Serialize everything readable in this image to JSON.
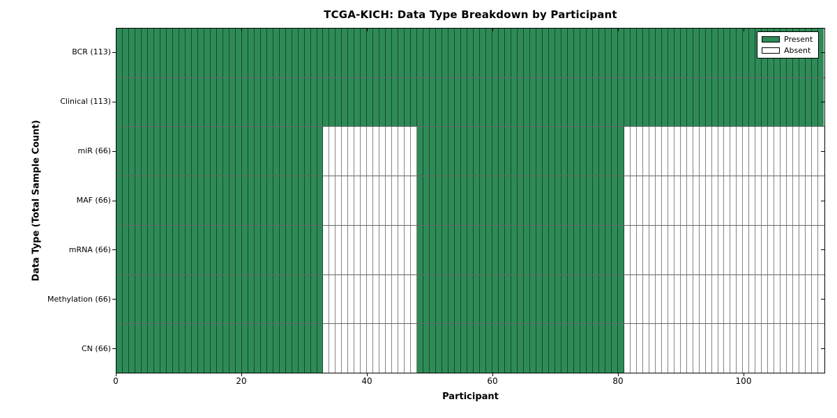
{
  "title": "TCGA-KICH: Data Type Breakdown by Participant",
  "chart_data": {
    "type": "heatmap",
    "title": "TCGA-KICH: Data Type Breakdown by Participant",
    "xlabel": "Participant",
    "ylabel": "Data Type (Total Sample Count)",
    "n_participants": 113,
    "xlim": [
      0,
      113
    ],
    "x_ticks": [
      0,
      20,
      40,
      60,
      80,
      100
    ],
    "grid": true,
    "legend": {
      "position": "upper right",
      "entries": [
        {
          "label": "Present",
          "color": "#2e8b57"
        },
        {
          "label": "Absent",
          "color": "#ffffff"
        }
      ]
    },
    "colors": {
      "present": "#2e8b57",
      "absent": "#ffffff",
      "axis": "#000000"
    },
    "rows": [
      {
        "label": "BCR (113)",
        "data_type": "BCR",
        "total_samples": 113,
        "present_ranges": [
          [
            0,
            113
          ]
        ]
      },
      {
        "label": "Clinical (113)",
        "data_type": "Clinical",
        "total_samples": 113,
        "present_ranges": [
          [
            0,
            113
          ]
        ]
      },
      {
        "label": "miR (66)",
        "data_type": "miR",
        "total_samples": 66,
        "present_ranges": [
          [
            0,
            33
          ],
          [
            48,
            81
          ]
        ]
      },
      {
        "label": "MAF (66)",
        "data_type": "MAF",
        "total_samples": 66,
        "present_ranges": [
          [
            0,
            33
          ],
          [
            48,
            81
          ]
        ]
      },
      {
        "label": "mRNA (66)",
        "data_type": "mRNA",
        "total_samples": 66,
        "present_ranges": [
          [
            0,
            33
          ],
          [
            48,
            81
          ]
        ]
      },
      {
        "label": "Methylation (66)",
        "data_type": "Methylation",
        "total_samples": 66,
        "present_ranges": [
          [
            0,
            33
          ],
          [
            48,
            81
          ]
        ]
      },
      {
        "label": "CN (66)",
        "data_type": "CN",
        "total_samples": 66,
        "present_ranges": [
          [
            0,
            33
          ],
          [
            48,
            81
          ]
        ]
      }
    ]
  }
}
